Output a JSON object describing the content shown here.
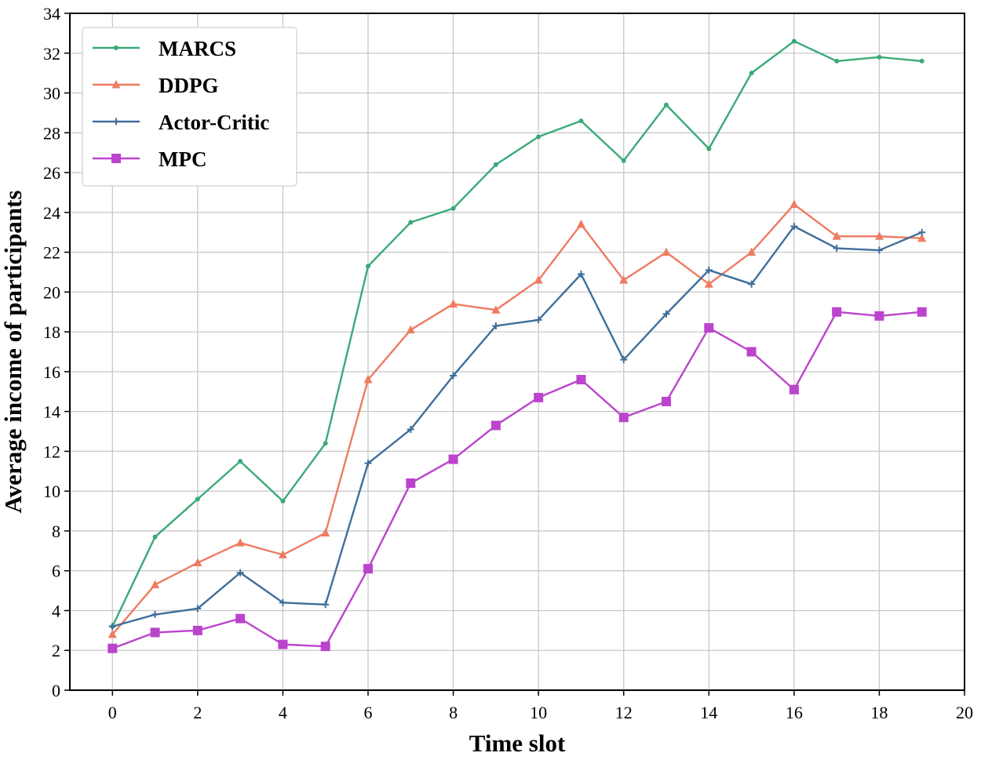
{
  "chart_data": {
    "type": "line",
    "title": "",
    "xlabel": "Time slot",
    "ylabel": "Average income of participants",
    "xlim": [
      -1,
      20
    ],
    "ylim": [
      0,
      34
    ],
    "xticks": [
      0,
      2,
      4,
      6,
      8,
      10,
      12,
      14,
      16,
      18,
      20
    ],
    "yticks": [
      0,
      2,
      4,
      6,
      8,
      10,
      12,
      14,
      16,
      18,
      20,
      22,
      24,
      26,
      28,
      30,
      32,
      34
    ],
    "grid": true,
    "legend_position": "upper-left",
    "x": [
      0,
      1,
      2,
      3,
      4,
      5,
      6,
      7,
      8,
      9,
      10,
      11,
      12,
      13,
      14,
      15,
      16,
      17,
      18,
      19
    ],
    "series": [
      {
        "name": "MARCS",
        "color": "#3aaa77",
        "marker": "point",
        "values": [
          3.2,
          7.7,
          9.6,
          11.5,
          9.5,
          12.4,
          21.3,
          23.5,
          24.2,
          26.4,
          27.8,
          28.6,
          26.6,
          29.4,
          27.2,
          31.0,
          32.6,
          31.6,
          31.8,
          31.6
        ]
      },
      {
        "name": "DDPG",
        "color": "#ee7b62",
        "marker": "triangle",
        "values": [
          2.8,
          5.3,
          6.4,
          7.4,
          6.8,
          7.9,
          15.6,
          18.1,
          19.4,
          19.1,
          20.6,
          23.4,
          20.6,
          22.0,
          20.4,
          22.0,
          24.4,
          22.8,
          22.8,
          22.7
        ]
      },
      {
        "name": "Actor-Critic",
        "color": "#3f6e9a",
        "marker": "plus",
        "values": [
          3.2,
          3.8,
          4.1,
          5.9,
          4.4,
          4.3,
          11.4,
          13.1,
          15.8,
          18.3,
          18.6,
          20.9,
          16.6,
          18.9,
          21.1,
          20.4,
          23.3,
          22.2,
          22.1,
          23.0
        ]
      },
      {
        "name": "MPC",
        "color": "#bb44cc",
        "marker": "square",
        "values": [
          2.1,
          2.9,
          3.0,
          3.6,
          2.3,
          2.2,
          6.1,
          10.4,
          11.6,
          13.3,
          14.7,
          15.6,
          13.7,
          14.5,
          18.2,
          17.0,
          15.1,
          19.0,
          18.8,
          19.0
        ]
      }
    ]
  }
}
